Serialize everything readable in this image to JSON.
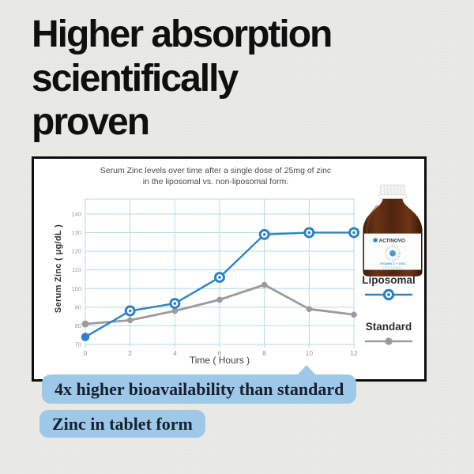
{
  "heading": {
    "text": "Higher absorption\nscientifically\nproven"
  },
  "chart_data": {
    "type": "line",
    "title": "Serum Zinc levels over time after a single dose of 25mg of zinc\nin the liposomal vs. non-liposomal form.",
    "xlabel": "Time ( Hours )",
    "ylabel": "Serum Zinc ( μg/dL )",
    "x": [
      0,
      2,
      4,
      6,
      8,
      10,
      12
    ],
    "xticks": [
      0,
      2,
      4,
      6,
      8,
      10,
      12
    ],
    "yticks": [
      70,
      80,
      90,
      100,
      110,
      120,
      130,
      140
    ],
    "xlim": [
      0,
      12
    ],
    "ylim": [
      70,
      148
    ],
    "grid": true,
    "legend_position": "right",
    "series": [
      {
        "name": "Standard",
        "color": "#9b9b9b",
        "marker": "dot",
        "values": [
          81,
          83,
          88,
          94,
          102,
          89,
          86
        ]
      },
      {
        "name": "Liposomal",
        "color": "#2e82c4",
        "marker": "ring",
        "values": [
          74,
          88,
          92,
          106,
          129,
          130,
          130
        ]
      }
    ]
  },
  "legend": {
    "liposomal_label": "Liposomal",
    "standard_label": "Standard"
  },
  "product_bottle": {
    "brand": "ACTINOVO",
    "label_line1": "VITAMIN C + ZINC",
    "label_line2": "LIPOSOMAL"
  },
  "callouts": {
    "first": "4x higher bioavailability than standard",
    "second": "Zinc in tablet form"
  },
  "colors": {
    "liposomal_blue": "#2e82c4",
    "standard_gray": "#9b9b9b",
    "grid_blue": "#aedbe6",
    "callout_blue": "#9ec8e8",
    "card_border": "#0d0d0d",
    "page_background": "#e9e9e6"
  }
}
